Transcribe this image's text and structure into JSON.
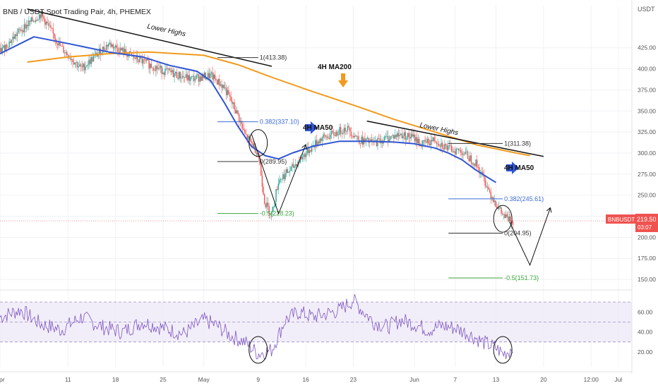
{
  "header": {
    "title": "BNB / USDT Spot Trading Pair, 4h, PHEMEX"
  },
  "chart_data": {
    "type": "candlestick",
    "currency_label": "USDT",
    "price_axis": {
      "min": 140,
      "max": 475,
      "ticks": [
        "425.00",
        "400.00",
        "375.00",
        "350.00",
        "325.00",
        "300.00",
        "275.00",
        "250.00",
        "225.00",
        "200.00",
        "175.00",
        "150.00"
      ],
      "tick_values": [
        425,
        400,
        375,
        350,
        325,
        300,
        275,
        250,
        225,
        200,
        175,
        150
      ]
    },
    "rsi_axis": {
      "min": 5,
      "max": 80,
      "ticks": [
        "60.00",
        "40.00",
        "20.00"
      ],
      "tick_values": [
        60,
        40,
        20
      ],
      "bands": [
        30,
        50,
        70
      ]
    },
    "time_axis": {
      "labels": [
        "Apr",
        "11",
        "18",
        "25",
        "May",
        "9",
        "16",
        "23",
        "Jun",
        "7",
        "13",
        "20",
        "12:00",
        "Jul"
      ],
      "label_days": [
        0,
        10,
        17,
        24,
        30,
        38,
        45,
        52,
        61,
        67,
        73,
        80,
        87,
        91
      ]
    },
    "last_price": {
      "symbol": "BNBUSDT",
      "price": "219.50",
      "countdown": "03:07",
      "value": 219.5
    },
    "ma200": {
      "name": "4H MA200",
      "color": "#f29a1c",
      "points": [
        [
          4,
          408
        ],
        [
          10,
          414
        ],
        [
          16,
          418
        ],
        [
          22,
          420
        ],
        [
          30,
          416
        ],
        [
          35,
          405
        ],
        [
          40,
          390
        ],
        [
          46,
          373
        ],
        [
          52,
          357
        ],
        [
          58,
          340
        ],
        [
          64,
          325
        ],
        [
          70,
          310
        ],
        [
          76,
          300
        ],
        [
          78,
          297
        ]
      ]
    },
    "ma50": {
      "name": "4H MA50",
      "color": "#2f55d4",
      "points": [
        [
          0,
          418
        ],
        [
          5,
          438
        ],
        [
          10,
          430
        ],
        [
          16,
          420
        ],
        [
          21,
          414
        ],
        [
          25,
          404
        ],
        [
          29,
          397
        ],
        [
          31,
          386
        ],
        [
          33,
          360
        ],
        [
          35,
          332
        ],
        [
          37,
          308
        ],
        [
          39,
          297
        ],
        [
          41,
          293
        ],
        [
          43,
          300
        ],
        [
          46,
          308
        ],
        [
          50,
          314
        ],
        [
          54,
          314
        ],
        [
          58,
          313
        ],
        [
          61,
          311
        ],
        [
          64,
          306
        ],
        [
          66,
          300
        ],
        [
          68,
          292
        ],
        [
          70,
          280
        ],
        [
          72,
          270
        ],
        [
          73,
          265
        ]
      ]
    },
    "annotations": {
      "lower_highs_1": "Lower Highs",
      "lower_highs_2": "Lower Highs",
      "ma200_label": "4H MA200",
      "ma50_label_1": "4H MA50",
      "ma50_label_2": "4H MA50"
    },
    "fib_levels": [
      {
        "label": "1(413.38)",
        "value": 413.38,
        "from_day": 32,
        "to_day": 38,
        "color": "#333333"
      },
      {
        "label": "0.382(337.10)",
        "value": 337.1,
        "from_day": 32,
        "to_day": 38,
        "color": "#3d6bd6"
      },
      {
        "label": "0(289.95)",
        "value": 289.95,
        "from_day": 32,
        "to_day": 38,
        "color": "#333333"
      },
      {
        "label": "-0.5(228.23)",
        "value": 228.23,
        "from_day": 32,
        "to_day": 38,
        "color": "#3ca63c"
      },
      {
        "label": "1(311.38)",
        "value": 311.38,
        "from_day": 66,
        "to_day": 74,
        "color": "#333333"
      },
      {
        "label": "0.382(245.61)",
        "value": 245.61,
        "from_day": 66,
        "to_day": 74,
        "color": "#3d6bd6"
      },
      {
        "label": "0(204.95)",
        "value": 204.95,
        "from_day": 66,
        "to_day": 74,
        "color": "#333333"
      },
      {
        "label": "-0.5(151.73)",
        "value": 151.73,
        "from_day": 66,
        "to_day": 74,
        "color": "#3ca63c"
      }
    ],
    "trendlines": [
      {
        "name": "lower-highs-1",
        "from": [
          4,
          471
        ],
        "to": [
          40,
          403
        ]
      },
      {
        "name": "lower-highs-2",
        "from": [
          54,
          338
        ],
        "to": [
          80,
          296
        ]
      }
    ],
    "projection_paths": [
      {
        "name": "may-bounce-path",
        "points": [
          [
            37,
            323
          ],
          [
            41,
            228
          ],
          [
            45,
            310
          ]
        ]
      },
      {
        "name": "june-projection-path",
        "points": [
          [
            75,
            218
          ],
          [
            78,
            167
          ],
          [
            81,
            235
          ]
        ]
      }
    ],
    "circles": [
      {
        "name": "may-top-circle",
        "day": 38,
        "price": 312
      },
      {
        "name": "june-circle",
        "day": 74,
        "price": 222
      },
      {
        "name": "may-rsi-circle",
        "day": 38,
        "rsi": 22
      },
      {
        "name": "june-rsi-circle",
        "day": 74,
        "rsi": 22
      }
    ],
    "price_anchors": [
      [
        0,
        420
      ],
      [
        3,
        446
      ],
      [
        6,
        465
      ],
      [
        9,
        425
      ],
      [
        12,
        400
      ],
      [
        16,
        430
      ],
      [
        20,
        412
      ],
      [
        24,
        398
      ],
      [
        28,
        388
      ],
      [
        31,
        392
      ],
      [
        33,
        378
      ],
      [
        35,
        345
      ],
      [
        36,
        322
      ],
      [
        37,
        312
      ],
      [
        38,
        300
      ],
      [
        39,
        240
      ],
      [
        40,
        228
      ],
      [
        41,
        268
      ],
      [
        43,
        282
      ],
      [
        45,
        300
      ],
      [
        47,
        316
      ],
      [
        49,
        322
      ],
      [
        51,
        330
      ],
      [
        53,
        315
      ],
      [
        55,
        312
      ],
      [
        57,
        318
      ],
      [
        59,
        322
      ],
      [
        61,
        318
      ],
      [
        62,
        310
      ],
      [
        64,
        316
      ],
      [
        66,
        305
      ],
      [
        68,
        302
      ],
      [
        70,
        288
      ],
      [
        71,
        273
      ],
      [
        72,
        255
      ],
      [
        73,
        240
      ],
      [
        74,
        226
      ],
      [
        75,
        220
      ],
      [
        75.6,
        219.5
      ]
    ],
    "rsi_anchors": [
      [
        0,
        55
      ],
      [
        3,
        62
      ],
      [
        6,
        48
      ],
      [
        9,
        42
      ],
      [
        12,
        55
      ],
      [
        15,
        45
      ],
      [
        18,
        40
      ],
      [
        21,
        50
      ],
      [
        24,
        44
      ],
      [
        27,
        38
      ],
      [
        30,
        52
      ],
      [
        32,
        46
      ],
      [
        34,
        36
      ],
      [
        36,
        30
      ],
      [
        38,
        18
      ],
      [
        40,
        22
      ],
      [
        42,
        52
      ],
      [
        44,
        60
      ],
      [
        46,
        55
      ],
      [
        48,
        58
      ],
      [
        50,
        62
      ],
      [
        52,
        72
      ],
      [
        53,
        64
      ],
      [
        55,
        50
      ],
      [
        57,
        45
      ],
      [
        59,
        52
      ],
      [
        61,
        48
      ],
      [
        63,
        42
      ],
      [
        65,
        46
      ],
      [
        67,
        44
      ],
      [
        69,
        38
      ],
      [
        71,
        30
      ],
      [
        73,
        24
      ],
      [
        74,
        18
      ],
      [
        75,
        21
      ],
      [
        75.6,
        28
      ]
    ]
  }
}
